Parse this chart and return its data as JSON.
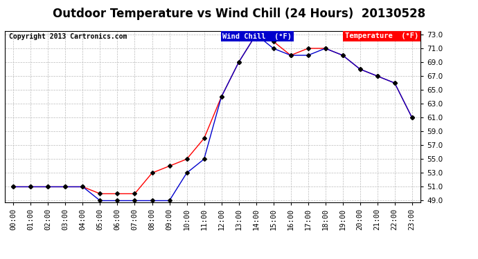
{
  "title": "Outdoor Temperature vs Wind Chill (24 Hours)  20130528",
  "copyright": "Copyright 2013 Cartronics.com",
  "legend_wind_chill": "Wind Chill  (°F)",
  "legend_temperature": "Temperature  (°F)",
  "hours": [
    0,
    1,
    2,
    3,
    4,
    5,
    6,
    7,
    8,
    9,
    10,
    11,
    12,
    13,
    14,
    15,
    16,
    17,
    18,
    19,
    20,
    21,
    22,
    23
  ],
  "temperature": [
    51,
    51,
    51,
    51,
    51,
    50,
    50,
    50,
    53,
    54,
    55,
    58,
    64,
    69,
    73,
    72,
    70,
    71,
    71,
    70,
    68,
    67,
    66,
    61
  ],
  "wind_chill": [
    51,
    51,
    51,
    51,
    51,
    49,
    49,
    49,
    49,
    49,
    53,
    55,
    64,
    69,
    73,
    71,
    70,
    70,
    71,
    70,
    68,
    67,
    66,
    61
  ],
  "ylim_min": 49.0,
  "ylim_max": 73.0,
  "yticks": [
    49.0,
    51.0,
    53.0,
    55.0,
    57.0,
    59.0,
    61.0,
    63.0,
    65.0,
    67.0,
    69.0,
    71.0,
    73.0
  ],
  "temp_color": "#ff0000",
  "wind_color": "#0000cd",
  "bg_color": "#ffffff",
  "grid_color": "#bbbbbb",
  "title_fontsize": 12,
  "copyright_fontsize": 7,
  "legend_fontsize": 7.5,
  "tick_fontsize": 7.5,
  "marker": "D",
  "marker_size": 3,
  "marker_color": "#000000",
  "line_width": 1.0
}
